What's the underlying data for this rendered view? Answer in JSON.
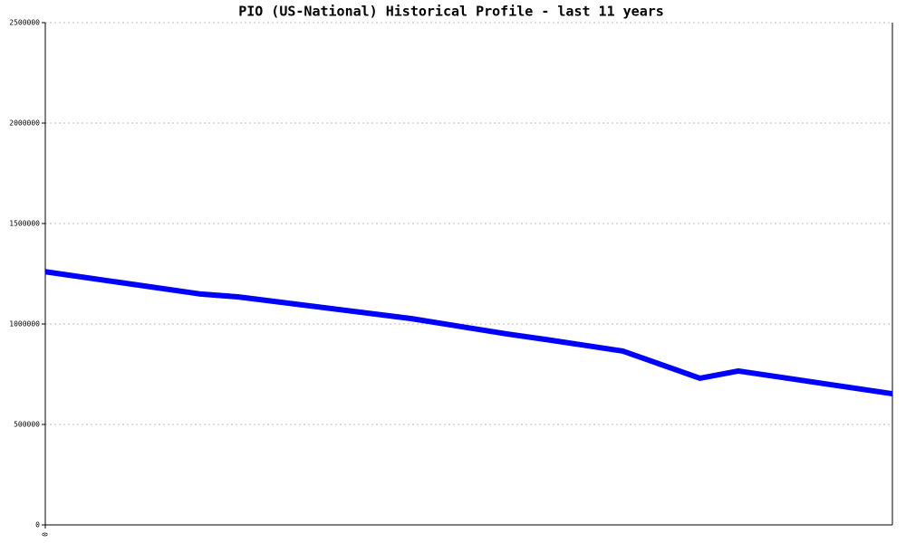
{
  "chart_data": {
    "type": "line",
    "title": "PIO (US-National) Historical Profile - last 11 years",
    "x": [
      0,
      2,
      2.5,
      4.75,
      6,
      6.5,
      7.5,
      8.5,
      9,
      11
    ],
    "series": [
      {
        "name": "PIO",
        "color": "#0000ff",
        "values": [
          1260000,
          1150000,
          1135000,
          1027000,
          950000,
          923000,
          865000,
          730000,
          766000,
          653000
        ]
      }
    ],
    "xlim": [
      0,
      11
    ],
    "xticks": [
      0
    ],
    "ylim": [
      0,
      2500000
    ],
    "yticks": [
      0,
      500000,
      1000000,
      1500000,
      2000000,
      2500000
    ],
    "grid": true
  }
}
